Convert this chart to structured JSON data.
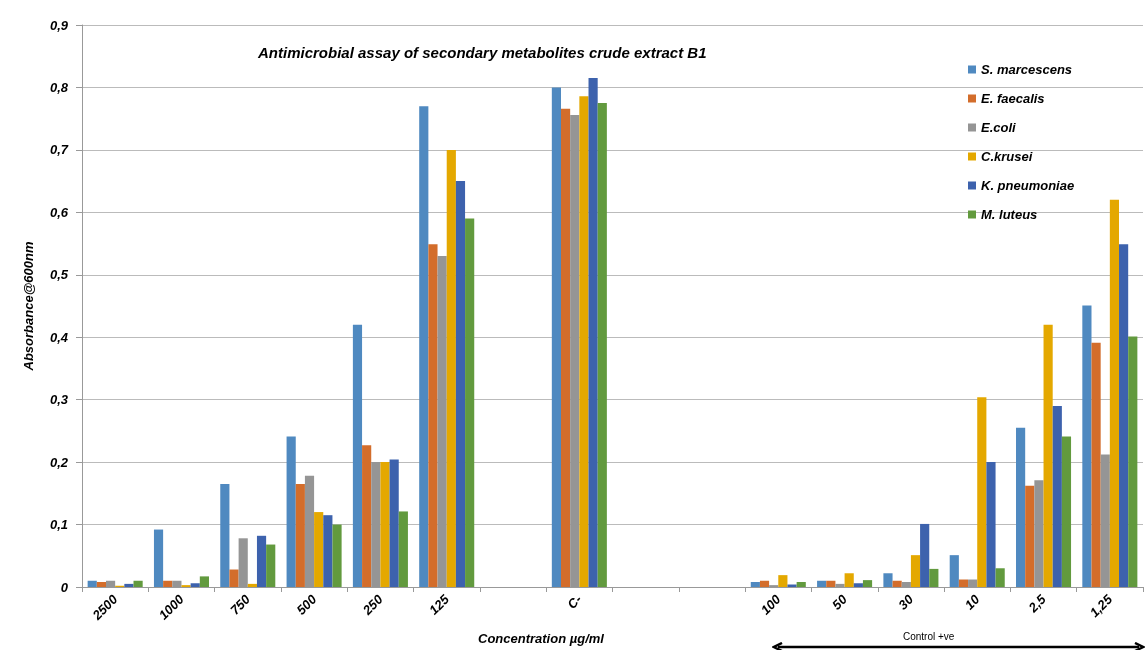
{
  "chart_data": {
    "type": "bar",
    "title": "Antimicrobial assay of secondary metabolites crude extract B1",
    "xlabel": "Concentration µg/ml",
    "ylabel": "Absorbance@600nm",
    "categories": [
      "2500",
      "1000",
      "750",
      "500",
      "250",
      "125",
      null,
      "C-",
      null,
      null,
      "100",
      "50",
      "30",
      "10",
      "2,5",
      "1,25"
    ],
    "series": [
      {
        "name": "S. marcescens",
        "color": "#4f89c0",
        "values": [
          0.01,
          0.092,
          0.165,
          0.241,
          0.42,
          0.77,
          null,
          0.8,
          null,
          null,
          0.008,
          0.01,
          0.022,
          0.051,
          0.255,
          0.451
        ]
      },
      {
        "name": "E. faecalis",
        "color": "#d36d2b",
        "values": [
          0.008,
          0.01,
          0.028,
          0.165,
          0.227,
          0.549,
          null,
          0.766,
          null,
          null,
          0.01,
          0.01,
          0.01,
          0.012,
          0.162,
          0.391
        ]
      },
      {
        "name": "E.coli",
        "color": "#959595",
        "values": [
          0.01,
          0.01,
          0.078,
          0.178,
          0.2,
          0.53,
          null,
          0.756,
          null,
          null,
          0.003,
          0.005,
          0.008,
          0.012,
          0.171,
          0.212
        ]
      },
      {
        "name": "C.krusei",
        "color": "#e4a800",
        "values": [
          0.002,
          0.003,
          0.005,
          0.12,
          0.2,
          0.7,
          null,
          0.786,
          null,
          null,
          0.019,
          0.022,
          0.051,
          0.304,
          0.42,
          0.62
        ]
      },
      {
        "name": "K. pneumoniae",
        "color": "#3d62ad",
        "values": [
          0.005,
          0.006,
          0.082,
          0.115,
          0.204,
          0.65,
          null,
          0.815,
          null,
          null,
          0.004,
          0.006,
          0.101,
          0.2,
          0.29,
          0.549
        ]
      },
      {
        "name": "M. luteus",
        "color": "#629a3e",
        "values": [
          0.01,
          0.017,
          0.068,
          0.1,
          0.121,
          0.59,
          null,
          0.775,
          null,
          null,
          0.008,
          0.011,
          0.029,
          0.03,
          0.241,
          0.401
        ]
      }
    ],
    "ylim": [
      0,
      0.9
    ],
    "yticks": [
      {
        "value": 0,
        "label": "0"
      },
      {
        "value": 0.1,
        "label": "0,1"
      },
      {
        "value": 0.2,
        "label": "0,2"
      },
      {
        "value": 0.3,
        "label": "0,3"
      },
      {
        "value": 0.4,
        "label": "0,4"
      },
      {
        "value": 0.5,
        "label": "0,5"
      },
      {
        "value": 0.6,
        "label": "0,6"
      },
      {
        "value": 0.7,
        "label": "0,7"
      },
      {
        "value": 0.8,
        "label": "0,8"
      },
      {
        "value": 0.9,
        "label": "0,9"
      }
    ],
    "grid": "y",
    "legend": "top right",
    "annotations": [
      "Control +ve"
    ]
  }
}
